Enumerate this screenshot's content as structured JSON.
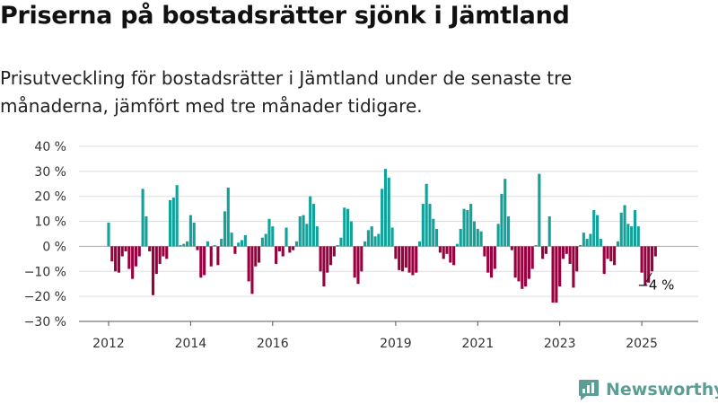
{
  "header": {
    "title": "Priserna på bostadsrätter sjönk i Jämtland",
    "subtitle": "Prisutveckling för bostadsrätter i Jämtland under de senaste tre månaderna, jämfört med tre månader tidigare."
  },
  "brand": {
    "logo_text": "Newsworthy"
  },
  "colors": {
    "positive": "#13a19a",
    "negative": "#99003f",
    "logo": "#5b9e95"
  },
  "chart_data": {
    "type": "bar",
    "ylim": [
      -30,
      40
    ],
    "yticks": [
      -30,
      -20,
      -10,
      0,
      10,
      20,
      30,
      40
    ],
    "ytick_labels": [
      "−30 %",
      "−20 %",
      "−10 %",
      "0 %",
      "10 %",
      "20 %",
      "30 %",
      "40 %"
    ],
    "xticks": [
      2012,
      2014,
      2016,
      2019,
      2021,
      2023,
      2025
    ],
    "xtick_labels": [
      "2012",
      "2014",
      "2016",
      "2019",
      "2021",
      "2023",
      "2025"
    ],
    "x_start": 2012.0,
    "x_step": 0.08333,
    "grid": true,
    "annotation": {
      "text": "−4 %",
      "value": -4
    },
    "values": [
      9.5,
      -6,
      -10,
      -10.5,
      -4,
      -2,
      -9,
      -13,
      -8,
      -4,
      23,
      12,
      -2,
      -19.5,
      -11,
      -7,
      -4,
      -5,
      18.5,
      19.5,
      24.5,
      0.5,
      1,
      2,
      12.5,
      9.5,
      -1.5,
      -12.5,
      -11.5,
      2,
      -8,
      0.5,
      -7.5,
      3,
      14,
      23.5,
      5.5,
      -3,
      1.5,
      2.5,
      4.5,
      -14,
      -19,
      -8,
      -6.5,
      3.5,
      5,
      11,
      8,
      -7,
      -2,
      -4,
      7.5,
      -2.5,
      -1.5,
      2,
      12,
      12.5,
      9,
      20,
      17,
      8,
      -10,
      -16,
      -10.5,
      -7.5,
      -4,
      0.5,
      3.5,
      15.5,
      15,
      10,
      -12.5,
      -15,
      -10,
      2,
      6.5,
      8,
      4,
      5,
      23,
      31,
      27.5,
      7.5,
      -5,
      -9.5,
      -10,
      -8.5,
      -10.5,
      -11.5,
      -10.5,
      2,
      17,
      25,
      17,
      11,
      7,
      -2.5,
      -5,
      -3,
      -6.5,
      -7.5,
      1,
      7,
      15,
      14.5,
      17,
      10,
      7,
      6,
      -4,
      -10.5,
      -12.5,
      -9,
      9,
      21,
      27,
      12,
      -1.5,
      -12.5,
      -14,
      -17,
      -16,
      -13,
      -9,
      0.5,
      29,
      -5,
      -3,
      12,
      -22.5,
      -22.5,
      -16,
      -5,
      -3,
      -7,
      -16.5,
      -10,
      0.5,
      5.5,
      3,
      5,
      14.5,
      12.5,
      3,
      -11,
      -5,
      -6,
      -7.5,
      2,
      13.5,
      16.5,
      9,
      8,
      14.5,
      8,
      -10.5,
      -15.5,
      -14.5,
      -10,
      -4
    ]
  }
}
